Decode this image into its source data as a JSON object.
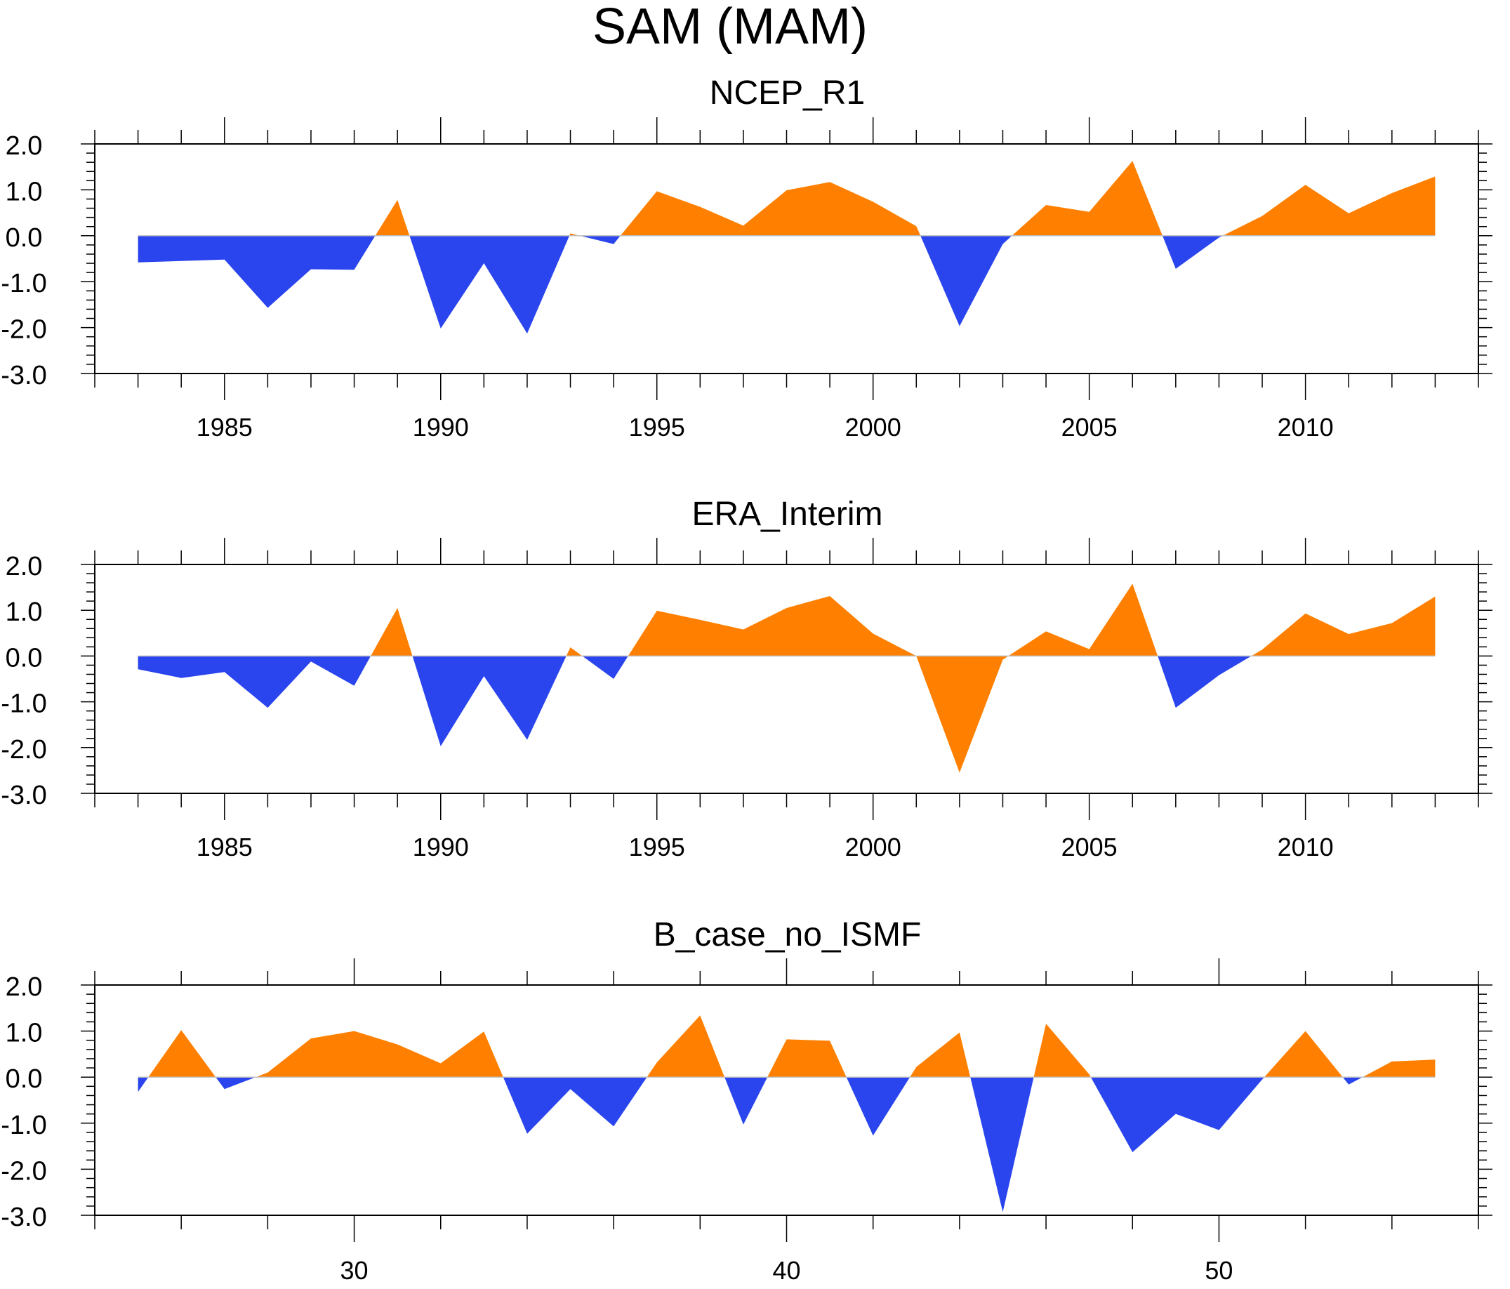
{
  "figure_title": "SAM (MAM)",
  "colors": {
    "positive": "#ff8000",
    "negative": "#2a45ee",
    "axis": "#000000",
    "zero_line": "#c0c0c0"
  },
  "chart_data": [
    {
      "type": "area",
      "title": "NCEP_R1",
      "xlabel": "",
      "ylabel": "",
      "xlim": [
        1982,
        2014
      ],
      "ylim": [
        -3,
        2
      ],
      "yticks": [
        2,
        1,
        0,
        -1,
        -2,
        -3
      ],
      "ytick_labels": [
        "2.0",
        "1.0",
        "0.0",
        "-1.0",
        "-2.0",
        "-3.0"
      ],
      "xticks": [
        1985,
        1990,
        1995,
        2000,
        2005,
        2010
      ],
      "xtick_labels": [
        "1985",
        "1990",
        "1995",
        "2000",
        "2005",
        "2010"
      ],
      "x": [
        1983,
        1984,
        1985,
        1986,
        1987,
        1988,
        1989,
        1990,
        1991,
        1992,
        1993,
        1994,
        1995,
        1996,
        1997,
        1998,
        1999,
        2000,
        2001,
        2002,
        2003,
        2004,
        2005,
        2006,
        2007,
        2008,
        2009,
        2010,
        2011,
        2012,
        2013
      ],
      "values": [
        -0.58,
        -0.55,
        -0.52,
        -1.57,
        -0.73,
        -0.74,
        0.78,
        -2.02,
        -0.6,
        -2.13,
        0.05,
        -0.18,
        0.97,
        0.63,
        0.22,
        0.99,
        1.17,
        0.74,
        0.21,
        -1.97,
        -0.18,
        0.67,
        0.52,
        1.63,
        -0.72,
        -0.04,
        0.43,
        1.11,
        0.49,
        0.93,
        1.29
      ]
    },
    {
      "type": "area",
      "title": "ERA_Interim",
      "xlabel": "",
      "ylabel": "",
      "xlim": [
        1982,
        2014
      ],
      "ylim": [
        -3,
        2
      ],
      "yticks": [
        2,
        1,
        0,
        -1,
        -2,
        -3
      ],
      "ytick_labels": [
        "2.0",
        "1.0",
        "0.0",
        "-1.0",
        "-2.0",
        "-3.0"
      ],
      "xticks": [
        1985,
        1990,
        1995,
        2000,
        2005,
        2010
      ],
      "xtick_labels": [
        "1985",
        "1990",
        "1995",
        "2000",
        "2005",
        "2010"
      ],
      "x": [
        1983,
        1984,
        1985,
        1986,
        1987,
        1988,
        1989,
        1990,
        1991,
        1992,
        1993,
        1994,
        1995,
        1996,
        1997,
        1998,
        1999,
        2000,
        2001,
        2002,
        2003,
        2004,
        2005,
        2006,
        2007,
        2008,
        2009,
        2010,
        2011,
        2012,
        2013
      ],
      "values": [
        -0.29,
        -0.48,
        -0.35,
        -1.13,
        -0.12,
        -0.65,
        1.05,
        -1.97,
        -0.44,
        -1.83,
        0.19,
        -0.5,
        0.99,
        0.79,
        0.58,
        1.05,
        1.31,
        0.49,
        0.0,
        -2.55,
        -0.08,
        0.54,
        0.15,
        1.58,
        -1.13,
        -0.42,
        0.14,
        0.93,
        0.48,
        0.72,
        1.3
      ]
    },
    {
      "type": "area",
      "title": "B_case_no_ISMF",
      "xlabel": "",
      "ylabel": "",
      "xlim": [
        24,
        56
      ],
      "ylim": [
        -3,
        2
      ],
      "yticks": [
        2,
        1,
        0,
        -1,
        -2,
        -3
      ],
      "ytick_labels": [
        "2.0",
        "1.0",
        "0.0",
        "-1.0",
        "-2.0",
        "-3.0"
      ],
      "xticks": [
        30,
        40,
        50
      ],
      "xtick_labels": [
        "30",
        "40",
        "50"
      ],
      "x": [
        25,
        26,
        27,
        28,
        29,
        30,
        31,
        32,
        33,
        34,
        35,
        36,
        37,
        38,
        39,
        40,
        41,
        42,
        43,
        44,
        45,
        46,
        47,
        48,
        49,
        50,
        51,
        52,
        53,
        54,
        55
      ],
      "values": [
        -0.32,
        1.02,
        -0.26,
        0.1,
        0.84,
        1.0,
        0.71,
        0.3,
        0.99,
        -1.23,
        -0.26,
        -1.07,
        0.32,
        1.34,
        -1.03,
        0.82,
        0.79,
        -1.27,
        0.22,
        0.97,
        -2.93,
        1.16,
        0.06,
        -1.63,
        -0.8,
        -1.15,
        -0.05,
        1.0,
        -0.16,
        0.34,
        0.38
      ]
    }
  ]
}
